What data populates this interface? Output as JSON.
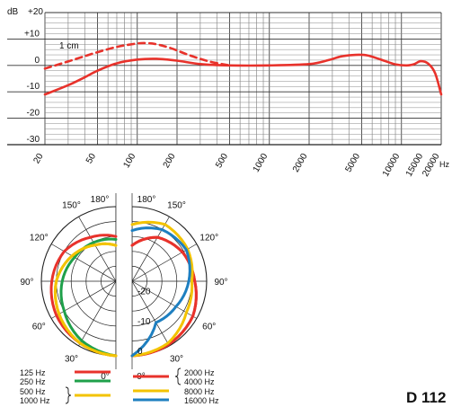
{
  "model_name": "D 112",
  "chart_data": [
    {
      "type": "line",
      "title": "",
      "xlabel": "Hz",
      "ylabel": "dB",
      "x_scale": "log",
      "xlim": [
        20,
        20000
      ],
      "ylim": [
        -30,
        20
      ],
      "x_ticks": [
        "20",
        "50",
        "100",
        "200",
        "500",
        "1000",
        "2000",
        "5000",
        "10000",
        "15000",
        "20000"
      ],
      "x_tick_values": [
        20,
        50,
        100,
        200,
        500,
        1000,
        2000,
        5000,
        10000,
        15000,
        20000
      ],
      "y_ticks": [
        "+20",
        "+10",
        "0",
        "-10",
        "-20",
        "-30"
      ],
      "y_tick_values": [
        20,
        10,
        0,
        -10,
        -20,
        -30
      ],
      "grid": true,
      "series": [
        {
          "name": "",
          "style": "solid",
          "color": "#e8322b",
          "x": [
            20,
            30,
            40,
            50,
            70,
            100,
            140,
            200,
            300,
            500,
            1000,
            2000,
            2800,
            3500,
            4500,
            5500,
            7000,
            9000,
            11000,
            12500,
            14000,
            16000,
            18000,
            20000
          ],
          "y": [
            -11,
            -7.5,
            -4.5,
            -2,
            0.8,
            2.2,
            2.5,
            1.8,
            0.5,
            0,
            0,
            0.5,
            2,
            3.4,
            4,
            3.8,
            2.2,
            0.4,
            0,
            0.5,
            1.6,
            0.6,
            -3,
            -11
          ]
        },
        {
          "name": "1 cm",
          "style": "dashed",
          "color": "#e8322b",
          "x": [
            20,
            30,
            40,
            50,
            70,
            100,
            120,
            140,
            180,
            250,
            350,
            500
          ],
          "y": [
            -1.2,
            1.5,
            3.5,
            5,
            7,
            8.3,
            8.4,
            8,
            6.5,
            3.8,
            1.5,
            0
          ]
        }
      ],
      "annotations": [
        "1 cm"
      ]
    },
    {
      "type": "polar",
      "title": "",
      "angle_labels": [
        "180°",
        "150°",
        "120°",
        "90°",
        "60°",
        "30°",
        "0°"
      ],
      "angles_deg": [
        180,
        150,
        120,
        90,
        60,
        30,
        0
      ],
      "radial_labels": [
        "0",
        "-10",
        "-20"
      ],
      "radial_values_db": [
        0,
        -10,
        -20
      ],
      "rlim_db": [
        -25,
        0
      ],
      "series": [
        {
          "name": "125 Hz",
          "color": "#e8322b",
          "side": "left",
          "angles": [
            0,
            30,
            60,
            90,
            120,
            150,
            165,
            180
          ],
          "db": [
            0,
            -1,
            -2,
            -3.5,
            -5,
            -8,
            -9,
            -10
          ]
        },
        {
          "name": "250 Hz",
          "color": "#1fa04a",
          "side": "left",
          "angles": [
            0,
            30,
            60,
            90,
            120,
            150,
            180
          ],
          "db": [
            0,
            -2,
            -5,
            -7,
            -9,
            -10,
            -11
          ]
        },
        {
          "name": "500 Hz",
          "color": "#f3c300",
          "side": "left",
          "angles": [
            0,
            30,
            60,
            90,
            120,
            150,
            180
          ],
          "db": [
            0,
            -1,
            -3,
            -5,
            -8,
            -11,
            -13
          ]
        },
        {
          "name": "1000 Hz",
          "color": "#f3c300",
          "side": "left",
          "angles": [
            0,
            30,
            60,
            90,
            120,
            150,
            180
          ],
          "db": [
            0,
            -1,
            -3,
            -5,
            -8,
            -11,
            -13
          ]
        },
        {
          "name": "2000 Hz",
          "color": "#e8322b",
          "side": "right",
          "angles": [
            0,
            30,
            60,
            90,
            120,
            150,
            180
          ],
          "db": [
            0,
            -0.5,
            -1.5,
            -4,
            -5.5,
            -8,
            -13
          ]
        },
        {
          "name": "4000 Hz",
          "color": "#e8322b",
          "side": "right",
          "angles": [
            0,
            30,
            60,
            90,
            120,
            150,
            180
          ],
          "db": [
            0,
            -0.5,
            -1.5,
            -4,
            -5.5,
            -8,
            -13
          ]
        },
        {
          "name": "8000 Hz",
          "color": "#f3c300",
          "side": "right",
          "angles": [
            0,
            30,
            60,
            90,
            120,
            150,
            180
          ],
          "db": [
            0,
            -1,
            -4,
            -5,
            -3.5,
            -3,
            -6
          ]
        },
        {
          "name": "16000 Hz",
          "color": "#1e7fc0",
          "side": "right",
          "angles": [
            0,
            30,
            60,
            90,
            120,
            150,
            180
          ],
          "db": [
            0,
            -9,
            -8,
            -6,
            -4,
            -5,
            -8
          ]
        }
      ],
      "legend": [
        {
          "labels": [
            "125 Hz",
            "250 Hz"
          ],
          "colors": [
            "#e8322b",
            "#1fa04a"
          ]
        },
        {
          "labels": [
            "500 Hz",
            "1000 Hz"
          ],
          "colors": [
            "#f3c300"
          ]
        },
        {
          "labels": [
            "2000 Hz",
            "4000 Hz"
          ],
          "colors": [
            "#e8322b"
          ]
        },
        {
          "labels": [
            "8000 Hz"
          ],
          "colors": [
            "#f3c300"
          ]
        },
        {
          "labels": [
            "16000 Hz"
          ],
          "colors": [
            "#1e7fc0"
          ]
        }
      ]
    }
  ]
}
